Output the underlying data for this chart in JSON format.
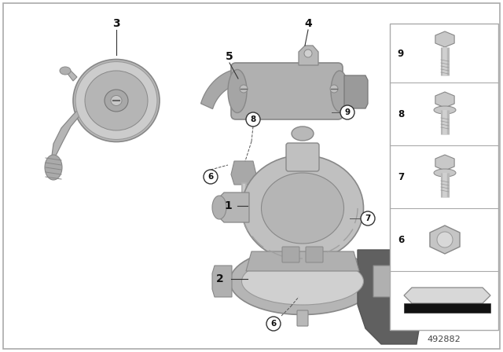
{
  "bg_color": "#ffffff",
  "part_number": "492882",
  "border_color": "#aaaaaa",
  "text_color": "#111111",
  "part_gray": "#c0c0c0",
  "dark_gray": "#888888",
  "mid_gray": "#b0b0b0",
  "light_gray": "#d8d8d8"
}
